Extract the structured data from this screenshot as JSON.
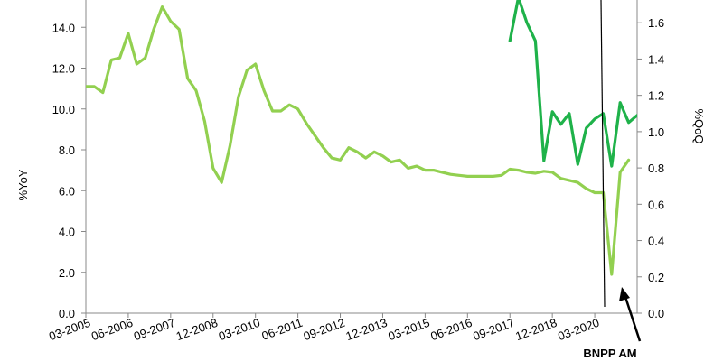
{
  "chart_data": {
    "type": "line",
    "x_labels": [
      "03-2005",
      "06-2006",
      "09-2007",
      "12-2008",
      "03-2010",
      "06-2011",
      "09-2012",
      "12-2013",
      "03-2015",
      "06-2016",
      "09-2017",
      "12-2018",
      "03-2020"
    ],
    "left_axis": {
      "label": "%YoY",
      "ylim": [
        0,
        16
      ],
      "ticks": [
        "0.0",
        "2.0",
        "4.0",
        "6.0",
        "8.0",
        "10.0",
        "12.0",
        "14.0"
      ]
    },
    "right_axis": {
      "label": "%QoQ",
      "ylim": [
        0,
        1.8
      ],
      "ticks": [
        "0.0",
        "0.2",
        "0.4",
        "0.6",
        "0.8",
        "1.0",
        "1.2",
        "1.4",
        "1.6"
      ]
    },
    "series": [
      {
        "axis": "left",
        "color": "#92d050",
        "x": [
          0,
          1,
          2,
          3,
          4,
          5,
          6,
          7,
          8,
          9,
          10,
          11,
          12,
          13,
          14,
          15,
          16,
          17,
          18,
          19,
          20,
          21,
          22,
          23,
          24,
          25,
          26,
          27,
          28,
          29,
          30,
          31,
          32,
          33,
          34,
          35,
          36,
          37,
          38,
          39,
          40,
          41,
          42,
          43,
          44,
          45,
          46,
          47,
          48,
          49,
          50,
          51,
          52,
          53,
          54,
          55,
          56,
          57,
          58,
          59,
          60,
          61,
          62,
          63,
          64
        ],
        "values": [
          11.1,
          11.1,
          10.8,
          12.4,
          12.5,
          13.7,
          12.2,
          12.5,
          13.9,
          15.0,
          14.3,
          13.9,
          11.5,
          10.9,
          9.4,
          7.1,
          6.4,
          8.2,
          10.6,
          11.9,
          12.2,
          10.9,
          9.9,
          9.9,
          10.2,
          10.0,
          9.3,
          8.7,
          8.1,
          7.6,
          7.5,
          8.1,
          7.9,
          7.6,
          7.9,
          7.7,
          7.4,
          7.5,
          7.1,
          7.2,
          7.0,
          7.0,
          6.9,
          6.8,
          6.75,
          6.7,
          6.7,
          6.7,
          6.7,
          6.75,
          7.05,
          7.0,
          6.9,
          6.85,
          6.95,
          6.9,
          6.6,
          6.5,
          6.4,
          6.1,
          5.9,
          5.9,
          1.9,
          6.9,
          7.5
        ]
      },
      {
        "axis": "right",
        "color": "#1fb24a",
        "x": [
          50,
          51,
          52,
          53,
          54,
          55,
          56,
          57,
          58,
          59,
          60,
          61,
          62,
          63,
          64,
          65
        ],
        "values": [
          1.5,
          1.74,
          1.6,
          1.5,
          0.84,
          1.11,
          1.04,
          1.1,
          0.82,
          1.02,
          1.07,
          1.1,
          0.81,
          1.16,
          1.05,
          1.09
        ]
      }
    ],
    "annotation": {
      "text": "BNPP AM"
    }
  }
}
